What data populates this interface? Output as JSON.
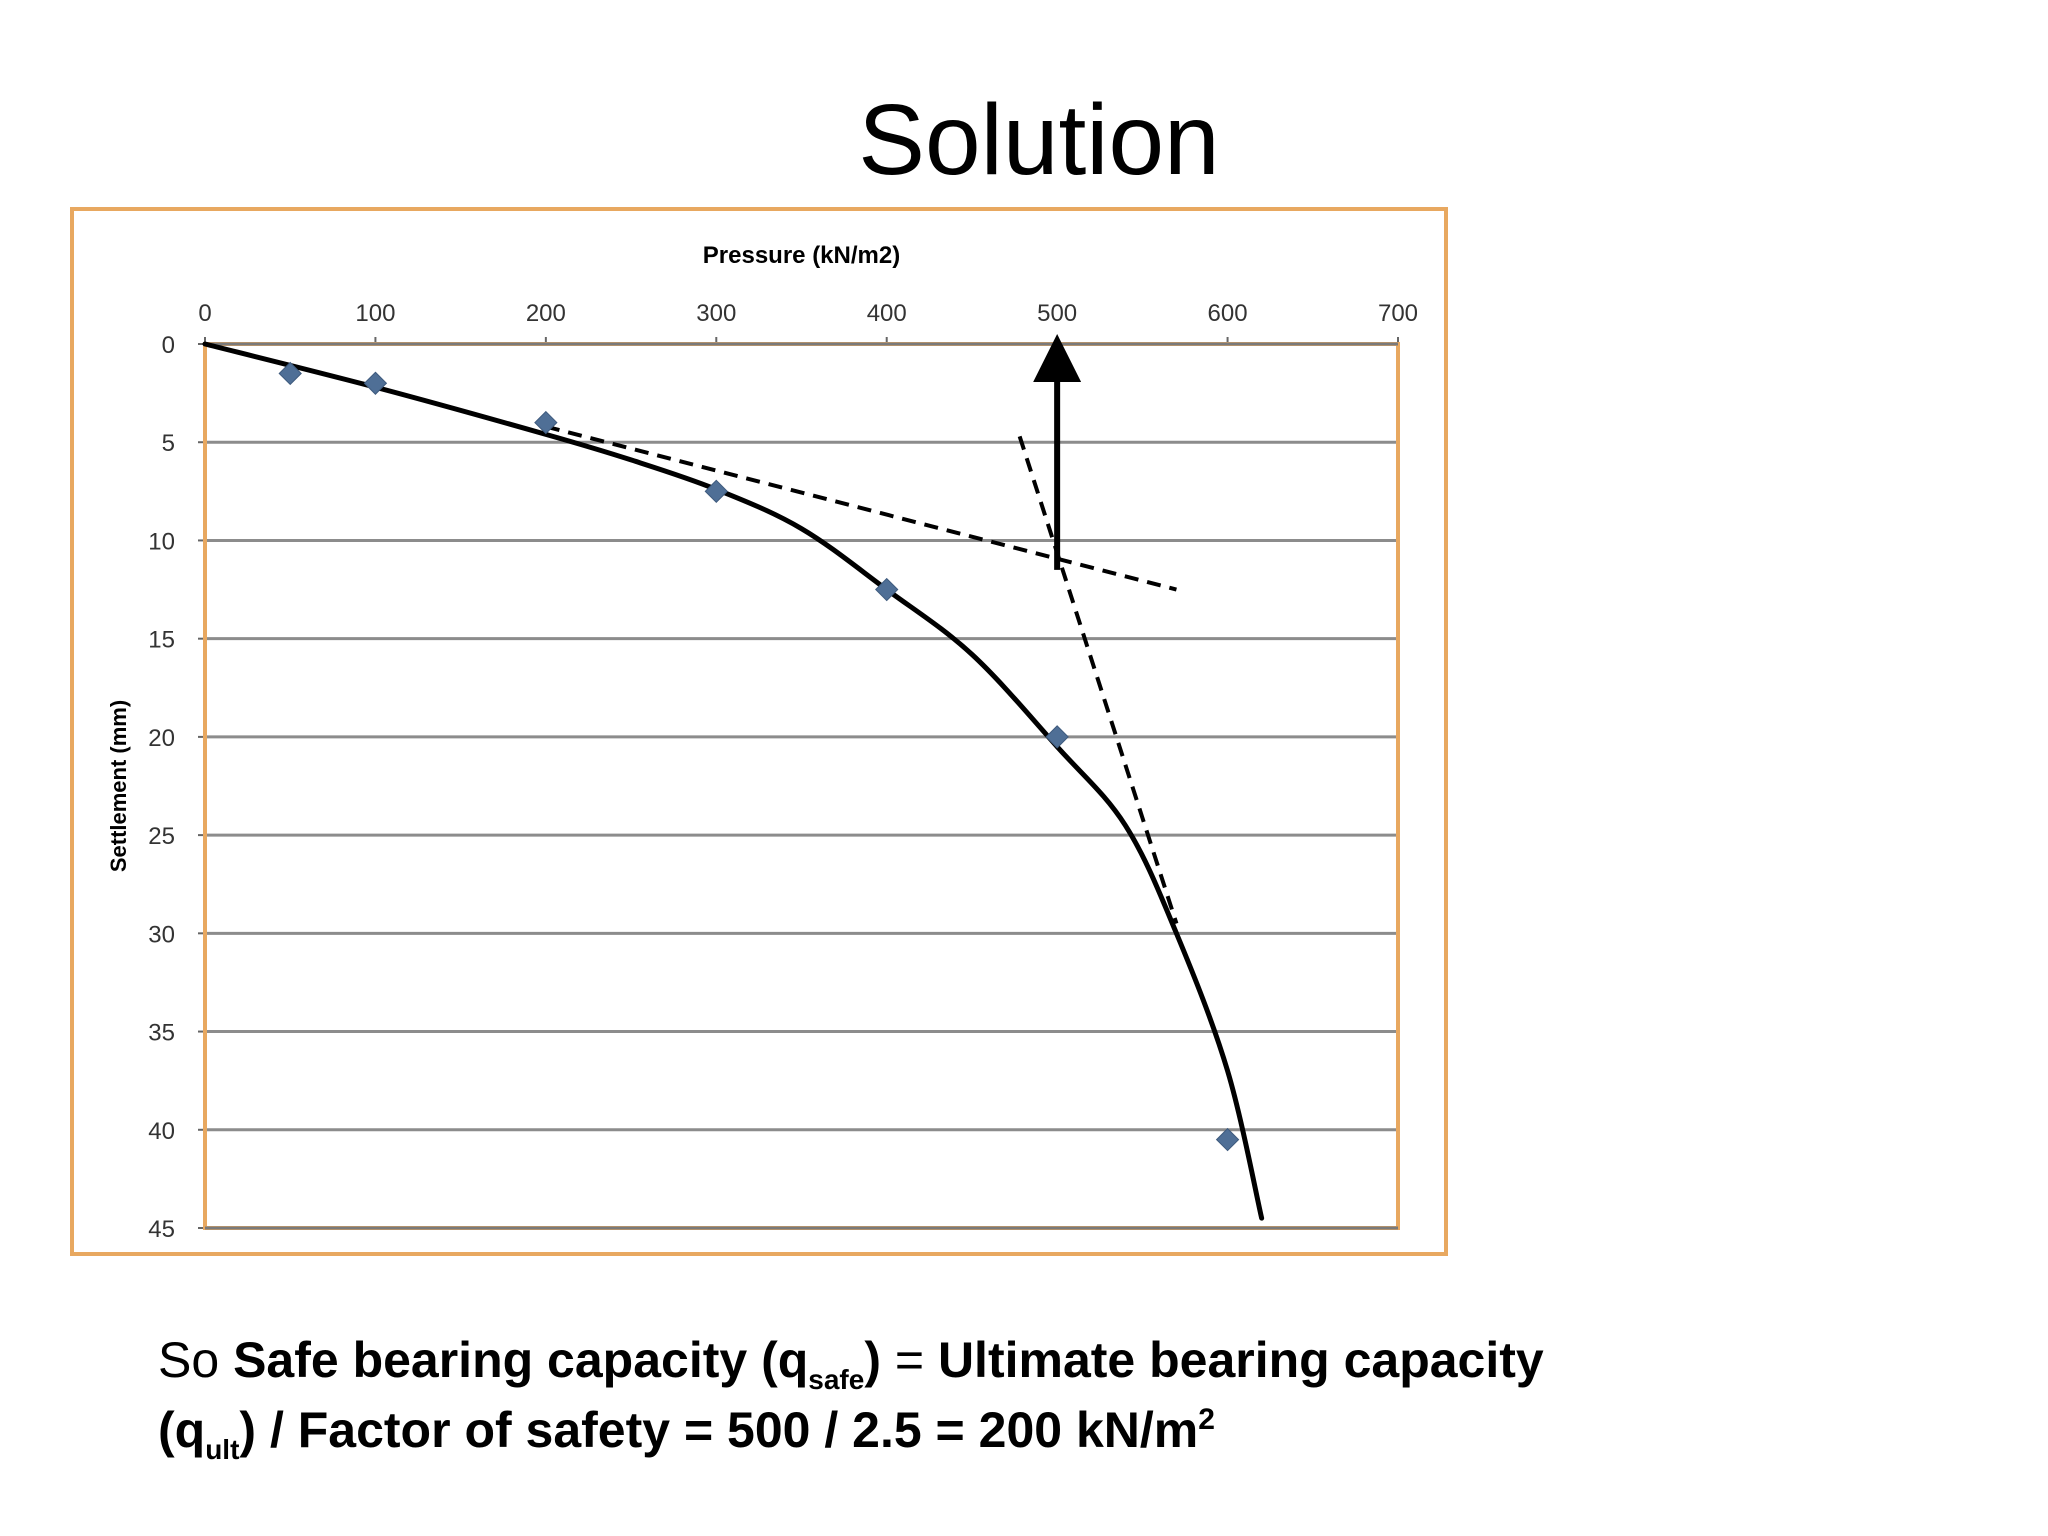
{
  "slide": {
    "title": "Solution",
    "caption": {
      "lead": "So ",
      "t1": "Safe bearing capacity (q",
      "sub1": "safe",
      "t2": ")",
      "t3": " = ",
      "t4": "Ultimate bearing capacity",
      "t5": "(q",
      "sub2": "ult",
      "t6": ") / Factor of safety = 500 / 2.5 = 200 kN/m",
      "sup": "2"
    }
  },
  "chart_data": {
    "type": "scatter",
    "title": "",
    "xlabel": "Pressure (kN/m2)",
    "ylabel": "Settlement (mm)",
    "xlim": [
      0,
      700
    ],
    "ylim": [
      0,
      45
    ],
    "x_axis_position": "top",
    "y_axis_inverted": true,
    "grid": "horizontal",
    "x_ticks": [
      0,
      100,
      200,
      300,
      400,
      500,
      600,
      700
    ],
    "y_ticks": [
      0,
      5,
      10,
      15,
      20,
      25,
      30,
      35,
      40,
      45
    ],
    "series": [
      {
        "marker": "diamond",
        "x": [
          50,
          100,
          200,
          300,
          400,
          500,
          600
        ],
        "y": [
          1.5,
          2,
          4,
          7.5,
          12.5,
          20,
          40.5
        ]
      }
    ],
    "fit_curve": {
      "x": [
        0,
        100,
        200,
        250,
        300,
        350,
        400,
        450,
        500,
        540,
        570,
        600,
        620
      ],
      "y": [
        0,
        2.2,
        4.6,
        5.9,
        7.4,
        9.4,
        12.5,
        15.8,
        20.5,
        24.5,
        30,
        37,
        44.5
      ]
    },
    "tangent_lines": [
      {
        "x": [
          200,
          570
        ],
        "y": [
          4.2,
          12.5
        ]
      },
      {
        "x": [
          478,
          570
        ],
        "y": [
          4.7,
          29.5
        ]
      }
    ],
    "annotation_arrow": {
      "x": [
        500,
        500
      ],
      "y": [
        11.5,
        0
      ]
    },
    "marker_color": "#4f6f96",
    "frame_color": "#e8a860",
    "grid_color": "#8c8c8c"
  }
}
